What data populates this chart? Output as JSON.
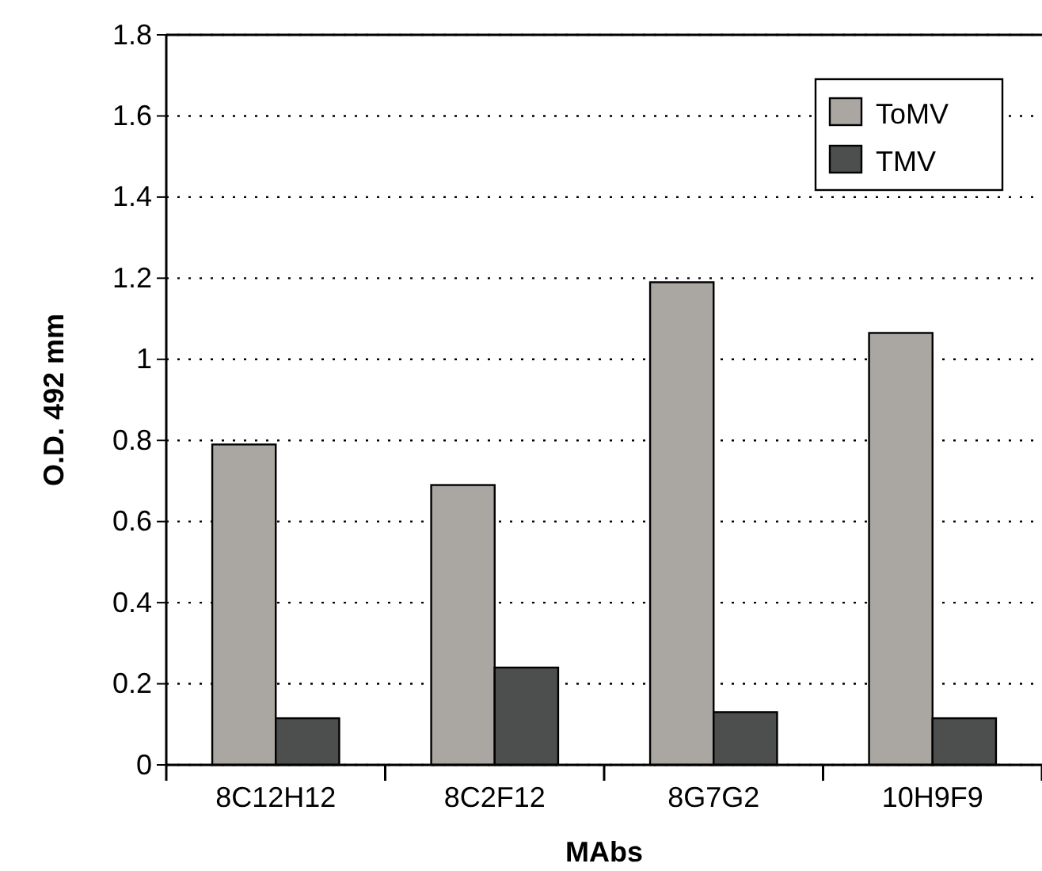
{
  "chart_data": {
    "type": "bar",
    "xlabel": "MAbs",
    "ylabel": "O.D. 492 mm",
    "categories": [
      "8C12H12",
      "8C2F12",
      "8G7G2",
      "10H9F9"
    ],
    "series": [
      {
        "name": "ToMV",
        "color": "#aaa6a2",
        "values": [
          0.79,
          0.69,
          1.19,
          1.065
        ]
      },
      {
        "name": "TMV",
        "color": "#4d4f4e",
        "values": [
          0.115,
          0.24,
          0.13,
          0.115
        ]
      }
    ],
    "ylim": [
      0,
      1.8
    ],
    "yticks": [
      {
        "value": 0,
        "label": "0"
      },
      {
        "value": 0.2,
        "label": "0.2"
      },
      {
        "value": 0.4,
        "label": "0.4"
      },
      {
        "value": 0.6,
        "label": "0.6"
      },
      {
        "value": 0.8,
        "label": "0.8"
      },
      {
        "value": 1,
        "label": "1"
      },
      {
        "value": 1.2,
        "label": "1.2"
      },
      {
        "value": 1.4,
        "label": "1.4"
      },
      {
        "value": 1.6,
        "label": "1.6"
      },
      {
        "value": 1.8,
        "label": "1.8"
      }
    ],
    "grid": "y",
    "legend": "top right"
  }
}
